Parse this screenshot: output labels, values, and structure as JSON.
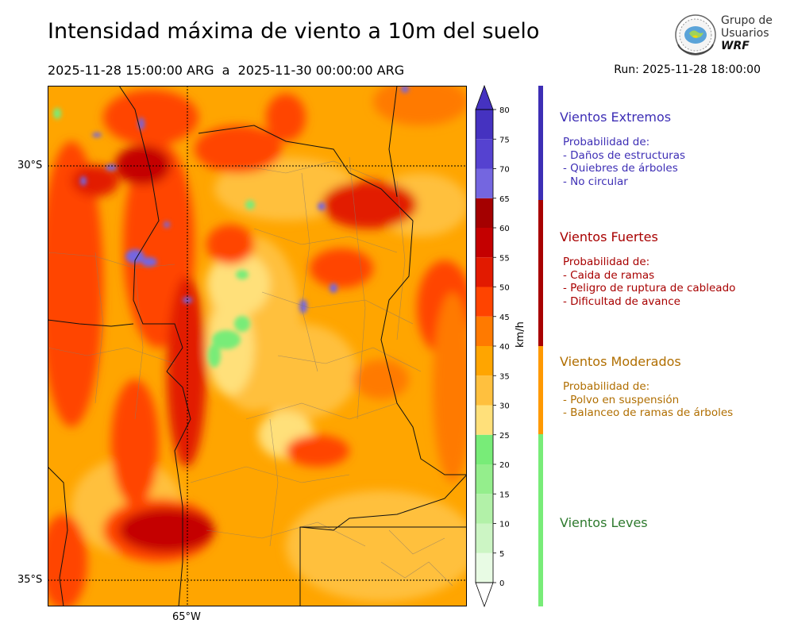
{
  "header": {
    "title": "Intensidad máxima de viento a 10m del suelo",
    "period": "2025-11-28 15:00:00 ARG  a  2025-11-30 00:00:00 ARG",
    "run": "Run: 2025-11-28 18:00:00"
  },
  "logo": {
    "line1": "Grupo de",
    "line2": "Usuarios",
    "line3": "WRF",
    "icon": "globe-seal-icon"
  },
  "map": {
    "lat_labels": [
      "30°S",
      "35°S"
    ],
    "lon_labels": [
      "65°W"
    ],
    "features": [
      "wind-speed-field",
      "province-borders",
      "department-borders",
      "graticule-30S",
      "graticule-35S",
      "graticule-65W"
    ]
  },
  "colorbar": {
    "unit": "km/h",
    "ticks": [
      "0",
      "5",
      "10",
      "15",
      "20",
      "25",
      "30",
      "35",
      "40",
      "45",
      "50",
      "55",
      "60",
      "65",
      "70",
      "75",
      "80"
    ],
    "colors": [
      "#e8fbe4",
      "#ccf5c4",
      "#b2f1a8",
      "#94ee8c",
      "#78ec78",
      "#ffe07a",
      "#ffc03e",
      "#ffa500",
      "#ff7a00",
      "#ff4400",
      "#e21a00",
      "#c40000",
      "#a40000",
      "#7466e0",
      "#5542d0",
      "#4532c0"
    ]
  },
  "legend": {
    "categories": [
      {
        "title": "Vientos Extremos",
        "color": "#3d2eb5",
        "lines": [
          "Probabilidad de:",
          "- Daños de estructuras",
          "- Quiebres de árboles",
          "- No circular"
        ]
      },
      {
        "title": "Vientos Fuertes",
        "color": "#a80000",
        "lines": [
          "Probabilidad de:",
          "- Caida de ramas",
          "- Peligro de ruptura de cableado",
          "- Dificultad de avance"
        ]
      },
      {
        "title": "Vientos Moderados",
        "color": "#b06e00",
        "lines": [
          "Probabilidad de:",
          "- Polvo en suspensión",
          "- Balanceo de ramas de árboles"
        ]
      },
      {
        "title": "Vientos Leves",
        "color": "#2e7a2e",
        "lines": []
      }
    ],
    "bar_colors": [
      "#3d2eb5",
      "#a80000",
      "#ff9900",
      "#78ec78"
    ]
  }
}
